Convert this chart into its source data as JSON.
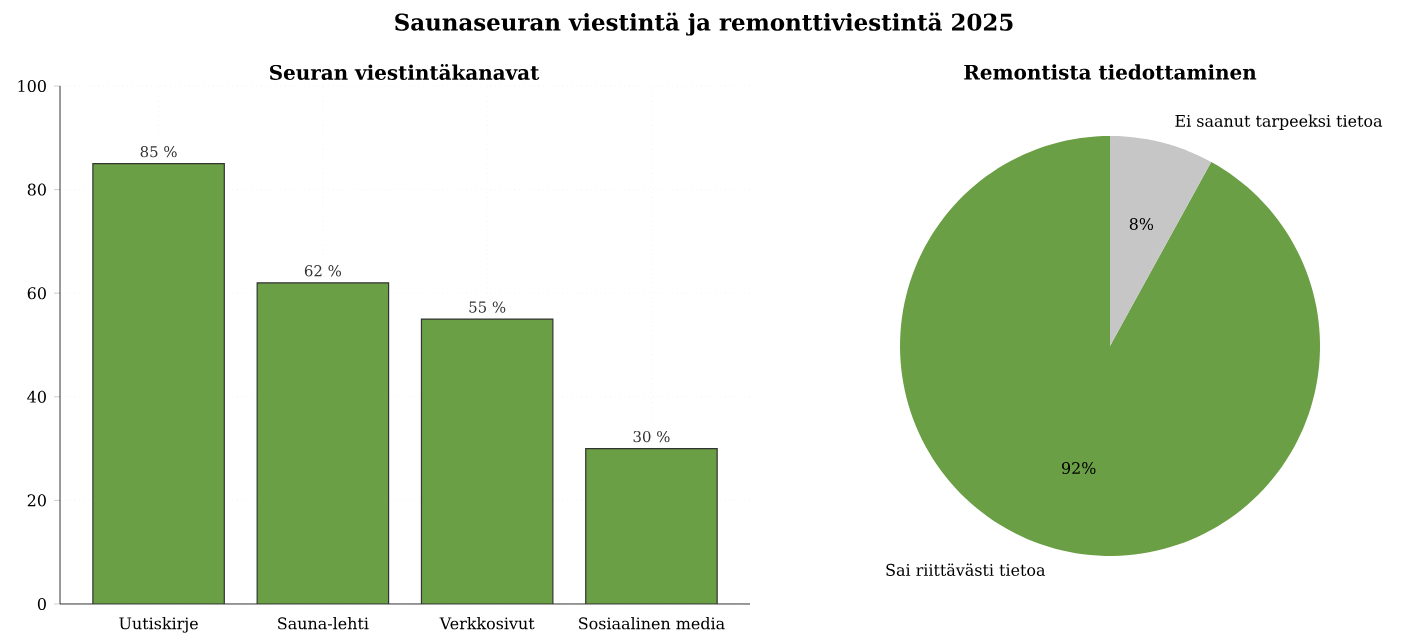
{
  "chart_data": [
    {
      "type": "bar",
      "title": "Seuran viestintäkanavat",
      "annotations": [
        "Saunaseuran viestintä ja remonttiviestintä 2025"
      ],
      "categories": [
        "Uutiskirje",
        "Sauna-lehti",
        "Verkkosivut",
        "Sosiaalinen media"
      ],
      "values": [
        85,
        62,
        55,
        30
      ],
      "value_labels": [
        "85 %",
        "62 %",
        "55 %",
        "30 %"
      ],
      "color": "#6b9f45",
      "ylim": [
        0,
        100
      ],
      "yticks": [
        0,
        20,
        40,
        60,
        80,
        100
      ],
      "grid": true
    },
    {
      "type": "pie",
      "title": "Remontista tiedottaminen",
      "categories": [
        "Sai riittävästi tietoa",
        "Ei saanut tarpeeksi tietoa"
      ],
      "values": [
        92,
        8
      ],
      "value_labels": [
        "92%",
        "8%"
      ],
      "colors": [
        "#6b9f45",
        "#c6c6c6"
      ]
    }
  ]
}
